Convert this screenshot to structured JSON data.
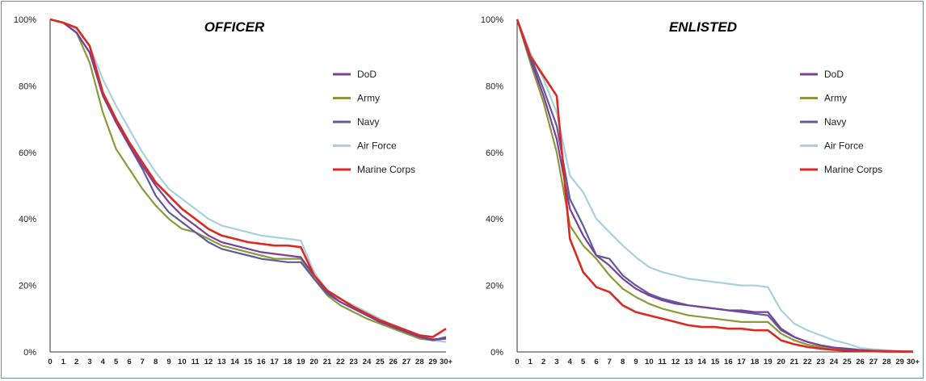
{
  "chart_data": [
    {
      "type": "line",
      "title": "OFFICER",
      "xlabel": "",
      "ylabel": "",
      "categories": [
        "0",
        "1",
        "2",
        "3",
        "4",
        "5",
        "6",
        "7",
        "8",
        "9",
        "10",
        "11",
        "12",
        "13",
        "14",
        "15",
        "16",
        "17",
        "18",
        "19",
        "20",
        "21",
        "22",
        "23",
        "24",
        "25",
        "26",
        "27",
        "28",
        "29",
        "30+"
      ],
      "yticks": [
        "0%",
        "20%",
        "40%",
        "60%",
        "80%",
        "100%"
      ],
      "ylim": [
        0,
        100
      ],
      "legend_position": "right",
      "grid": false,
      "series": [
        {
          "name": "DoD",
          "color": "#7b3f98",
          "values": [
            100,
            99,
            96,
            90,
            77,
            69,
            62,
            56,
            50,
            45,
            41,
            38,
            35,
            33,
            32,
            31,
            30,
            29.5,
            29,
            28.5,
            23,
            18,
            15,
            13,
            11,
            9,
            7.5,
            6,
            4.5,
            3.8,
            4
          ]
        },
        {
          "name": "Army",
          "color": "#8a9a3a",
          "values": [
            100,
            99,
            96,
            87,
            72,
            61,
            55,
            49,
            44,
            40,
            37,
            36,
            34,
            32,
            31,
            30,
            29,
            28,
            28,
            28,
            22,
            17,
            14,
            12,
            10,
            8.5,
            7,
            5.5,
            4,
            3.5,
            4
          ]
        },
        {
          "name": "Navy",
          "color": "#5c5c9e",
          "values": [
            100,
            99,
            96,
            90,
            78,
            69,
            62,
            55,
            47,
            42,
            39,
            36,
            33,
            31,
            30,
            29,
            28,
            27.5,
            27,
            27,
            22,
            17.5,
            15,
            13,
            11,
            9,
            7.5,
            6,
            4.5,
            3.5,
            4.5
          ]
        },
        {
          "name": "Air Force",
          "color": "#a8d0de",
          "values": [
            100,
            99,
            97,
            92,
            82,
            74,
            67,
            60,
            54,
            49,
            46,
            43,
            40,
            38,
            37,
            36,
            35,
            34.5,
            34,
            33.5,
            24,
            18.5,
            16,
            14,
            12,
            10,
            8,
            6.5,
            5,
            3.5,
            3
          ]
        },
        {
          "name": "Marine Corps",
          "color": "#d92b22",
          "values": [
            100,
            99,
            97.5,
            92,
            78,
            70,
            63,
            57,
            51,
            47,
            43,
            40,
            37,
            35,
            34,
            33,
            32.5,
            32,
            32,
            31.5,
            23,
            18.5,
            16,
            13.5,
            11.5,
            9.5,
            8,
            6.5,
            5,
            4.5,
            7
          ]
        }
      ]
    },
    {
      "type": "line",
      "title": "ENLISTED",
      "xlabel": "",
      "ylabel": "",
      "categories": [
        "0",
        "1",
        "2",
        "3",
        "4",
        "5",
        "6",
        "7",
        "8",
        "9",
        "10",
        "11",
        "12",
        "13",
        "14",
        "15",
        "16",
        "17",
        "18",
        "19",
        "20",
        "21",
        "22",
        "23",
        "24",
        "25",
        "26",
        "27",
        "28",
        "29",
        "30+"
      ],
      "yticks": [
        "0%",
        "20%",
        "40%",
        "60%",
        "80%",
        "100%"
      ],
      "ylim": [
        0,
        100
      ],
      "legend_position": "right",
      "grid": false,
      "series": [
        {
          "name": "DoD",
          "color": "#7b3f98",
          "values": [
            100,
            88,
            77,
            64,
            43,
            35,
            29,
            26,
            22,
            19,
            17,
            15.5,
            14.5,
            14,
            13.5,
            13,
            12.5,
            12.5,
            12,
            12,
            7,
            4.5,
            3,
            2,
            1.3,
            1,
            0.6,
            0.4,
            0.3,
            0.2,
            0.1
          ]
        },
        {
          "name": "Army",
          "color": "#8a9a3a",
          "values": [
            100,
            87,
            75,
            60,
            38,
            32,
            28,
            23,
            19,
            16.5,
            14.5,
            13,
            12,
            11,
            10.5,
            10,
            9.5,
            9,
            9,
            9,
            5.5,
            3.5,
            2.2,
            1.5,
            1,
            0.7,
            0.5,
            0.3,
            0.2,
            0.1,
            0.1
          ]
        },
        {
          "name": "Navy",
          "color": "#5c5c9e",
          "values": [
            100,
            89,
            79,
            68,
            46,
            38,
            29,
            28,
            23,
            20,
            17.5,
            16,
            15,
            14,
            13.5,
            13,
            12.5,
            12,
            11.5,
            11,
            6.5,
            4.5,
            3,
            2,
            1.3,
            0.8,
            0.5,
            0.3,
            0.2,
            0.1,
            0.1
          ]
        },
        {
          "name": "Air Force",
          "color": "#a8d0de",
          "values": [
            100,
            90,
            82,
            72,
            53,
            48,
            40,
            36,
            32,
            28.5,
            25.5,
            24,
            23,
            22,
            21.5,
            21,
            20.5,
            20,
            20,
            19.5,
            12.5,
            8.5,
            6.5,
            5,
            3.5,
            2.5,
            1.2,
            0.8,
            0.5,
            0.3,
            0.2
          ]
        },
        {
          "name": "Marine Corps",
          "color": "#d92b22",
          "values": [
            100,
            89,
            83,
            77,
            34,
            24,
            19.5,
            18,
            14,
            12,
            11,
            10,
            9,
            8,
            7.5,
            7.5,
            7,
            7,
            6.5,
            6.5,
            3.5,
            2.3,
            1.5,
            1,
            0.6,
            0.4,
            0.3,
            0.2,
            0.1,
            0.1,
            0.1
          ]
        }
      ]
    }
  ]
}
